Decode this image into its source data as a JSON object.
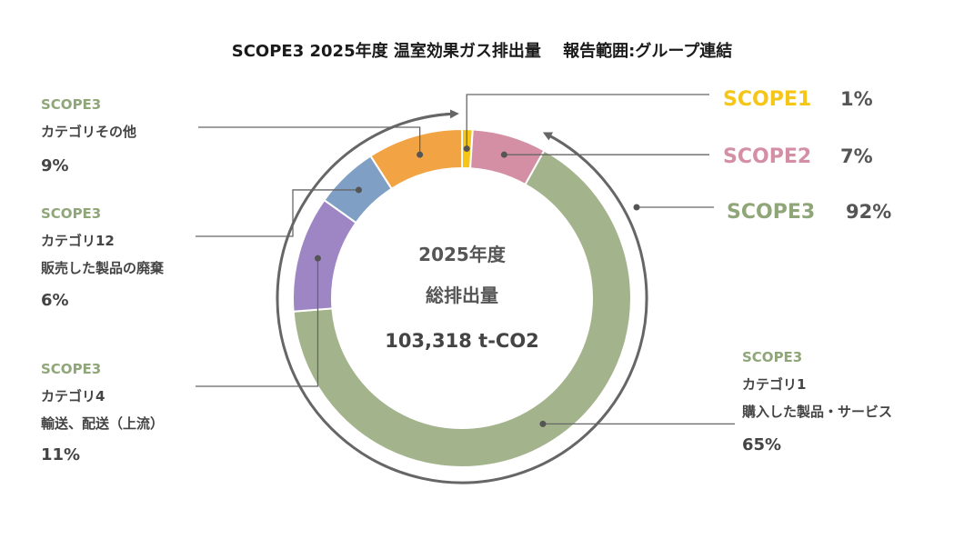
{
  "title": "SCOPE3 2025年度 温室効果ガス排出量　 報告範囲:グループ連結",
  "center": {
    "line1": "2025年度",
    "line2": "総排出量",
    "total": "103,318 t-CO2"
  },
  "colors": {
    "scope1": "#f5c518",
    "scope2": "#d48fa5",
    "scope3": "#a3b48c",
    "cat1": "#a3b48c",
    "cat4": "#9e86c5",
    "cat12": "#7f9fc4",
    "cat_other": "#f2a445",
    "lines": "#666666",
    "arc": "#666666"
  },
  "scope_labels": [
    {
      "name": "SCOPE1",
      "pct": "1%",
      "color": "#f5c518"
    },
    {
      "name": "SCOPE2",
      "pct": "7%",
      "color": "#d48fa5"
    },
    {
      "name": "SCOPE3",
      "pct": "92%",
      "color": "#8fa679"
    }
  ],
  "category_labels": [
    {
      "head": "SCOPE3",
      "lines": [
        "カテゴリその他"
      ],
      "pct": "9%"
    },
    {
      "head": "SCOPE3",
      "lines": [
        "カテゴリ12",
        "販売した製品の廃棄"
      ],
      "pct": "6%"
    },
    {
      "head": "SCOPE3",
      "lines": [
        "カテゴリ4",
        "輸送、配送（上流）"
      ],
      "pct": "11%"
    },
    {
      "head": "SCOPE3",
      "lines": [
        "カテゴリ1",
        "購入した製品・サービス"
      ],
      "pct": "65%"
    }
  ],
  "chart_data": {
    "type": "pie",
    "title": "SCOPE3 2025年度 温室効果ガス排出量　 報告範囲:グループ連結",
    "categories": [
      "SCOPE1",
      "SCOPE2",
      "SCOPE3 カテゴリ1 購入した製品・サービス",
      "SCOPE3 カテゴリ4 輸送、配送（上流）",
      "SCOPE3 カテゴリ12 販売した製品の廃棄",
      "SCOPE3 カテゴリその他"
    ],
    "values": [
      1,
      7,
      65,
      11,
      6,
      9
    ],
    "colors": [
      "#f5c518",
      "#d48fa5",
      "#a3b48c",
      "#9e86c5",
      "#7f9fc4",
      "#f2a445"
    ],
    "scope_totals": {
      "SCOPE1": 1,
      "SCOPE2": 7,
      "SCOPE3": 92
    },
    "total": "103,318 t-CO2",
    "donut": true
  }
}
